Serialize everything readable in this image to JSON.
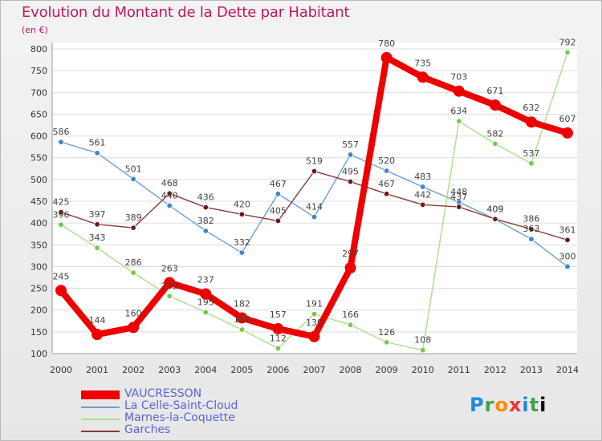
{
  "header": {
    "title": "Evolution du Montant de la Dette par Habitant",
    "subtitle": "(en €)"
  },
  "chart_data": {
    "type": "line",
    "title": "Evolution du Montant de la Dette par Habitant",
    "ylabel": "(en €)",
    "xlabel": "",
    "ylim": [
      100,
      800
    ],
    "yticks": [
      100,
      150,
      200,
      250,
      300,
      350,
      400,
      450,
      500,
      550,
      600,
      650,
      700,
      750,
      800
    ],
    "x": [
      "2000",
      "2001",
      "2002",
      "2003",
      "2004",
      "2005",
      "2006",
      "2007",
      "2008",
      "2009",
      "2010",
      "2011",
      "2012",
      "2013",
      "2014"
    ],
    "grid": "horizontal",
    "legend": "bottom-left",
    "series": [
      {
        "name": "VAUCRESSON",
        "color": "#ee0000",
        "emphasis": true,
        "values": [
          245,
          144,
          160,
          263,
          237,
          182,
          157,
          139,
          297,
          780,
          735,
          703,
          671,
          632,
          607
        ],
        "labels": [
          "245",
          "144",
          "160",
          "263",
          "237",
          "182",
          "157",
          "139",
          "297",
          "780",
          "735",
          "703",
          "671",
          "632",
          "607"
        ]
      },
      {
        "name": "La Celle-Saint-Cloud",
        "color": "#6a9fd4",
        "marker": "#3f84d0",
        "values": [
          586,
          561,
          501,
          440,
          382,
          332,
          467,
          414,
          557,
          520,
          483,
          448,
          409,
          363,
          300
        ],
        "labels": [
          "586",
          "561",
          "501",
          "440",
          "382",
          "332",
          "467",
          "414",
          "557",
          "520",
          "483",
          "448",
          "409",
          "363",
          "300"
        ]
      },
      {
        "name": "Marnes-la-Coquette",
        "color": "#a8e08a",
        "marker": "#76c943",
        "values": [
          396,
          343,
          286,
          232,
          195,
          155,
          112,
          191,
          166,
          126,
          108,
          634,
          582,
          537,
          792
        ],
        "labels": [
          "396",
          "343",
          "286",
          "232",
          "195",
          "155",
          "112",
          "191",
          "166",
          "126",
          "108",
          "634",
          "582",
          "537",
          "792"
        ]
      },
      {
        "name": "Garches",
        "color": "#8a3a3a",
        "marker": "#6b1a1a",
        "values": [
          425,
          397,
          389,
          468,
          436,
          420,
          405,
          519,
          495,
          467,
          442,
          437,
          409,
          386,
          361
        ],
        "labels": [
          "425",
          "397",
          "389",
          "468",
          "436",
          "420",
          "405",
          "519",
          "495",
          "467",
          "442",
          "437",
          "409",
          "386",
          "361"
        ]
      }
    ]
  },
  "legend": {
    "items": [
      {
        "label": "VAUCRESSON",
        "color": "#ee0000"
      },
      {
        "label": "La Celle-Saint-Cloud",
        "color": "#6a9fd4"
      },
      {
        "label": "Marnes-la-Coquette",
        "color": "#a8e08a"
      },
      {
        "label": "Garches",
        "color": "#8a3a3a"
      }
    ]
  },
  "branding": {
    "logo_letters": [
      "P",
      "r",
      "o",
      "x",
      "i",
      "t",
      "i"
    ]
  }
}
